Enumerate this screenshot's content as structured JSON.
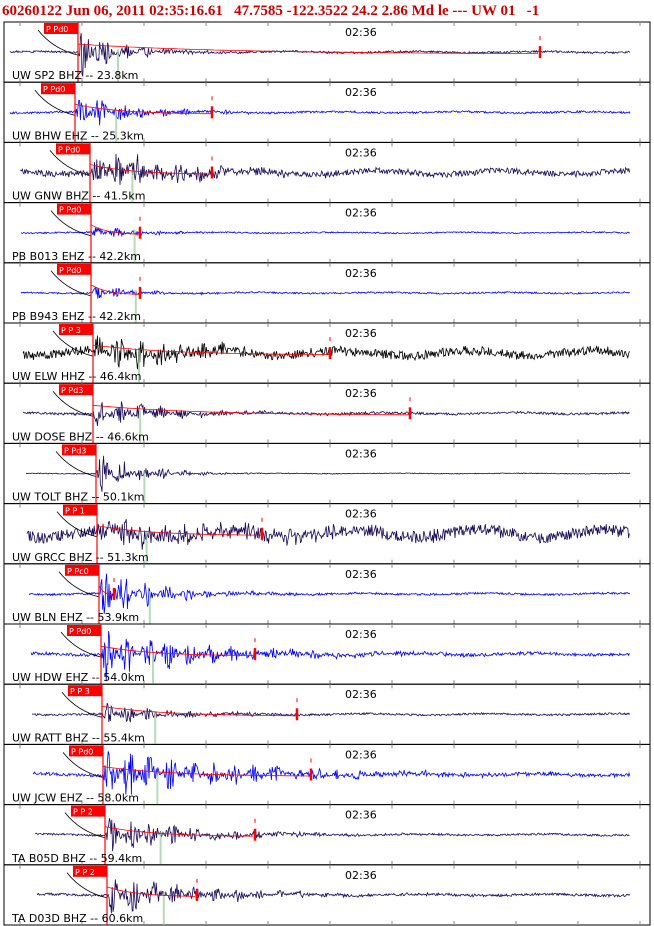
{
  "header": {
    "text": "60260122 Jun 06, 2011 02:35:16.61   47.7585 -122.3522 24.2 2.86 Md le --- UW 01   -1"
  },
  "chart_data": {
    "type": "seismogram",
    "minute_label": "02:36",
    "pick_phase": "P",
    "colors": {
      "red": "#ff0000",
      "blue": "#0000ff",
      "navy": "#1a0a5a",
      "black": "#000000",
      "green": "#99cc99",
      "tick": "#8a8a8a"
    },
    "traces": [
      {
        "label": "UW SP2 BHZ -- 23.8km",
        "pick_text": "Pd0",
        "color": "navy",
        "p": 78,
        "onset": 78,
        "amp": 30,
        "decay": 40,
        "noise": 1.0,
        "coda": 540,
        "seed": 3
      },
      {
        "label": "UW BHW EHZ -- 25.3km",
        "pick_text": "Pd0",
        "color": "blue",
        "p": 75,
        "onset": 75,
        "amp": 22,
        "decay": 55,
        "noise": 1.0,
        "coda": 212,
        "seed": 7
      },
      {
        "label": "UW GNW BHZ -- 41.5km",
        "pick_text": "Pd0",
        "color": "navy",
        "p": 90,
        "onset": 90,
        "amp": 25,
        "decay": 90,
        "noise": 3.0,
        "coda": 212,
        "seed": 11
      },
      {
        "label": "PB B013 EHZ -- 42.2km",
        "pick_text": "Pd0",
        "color": "blue",
        "p": 91,
        "onset": 91,
        "amp": 8,
        "decay": 45,
        "noise": 0.7,
        "coda": 140,
        "seed": 13
      },
      {
        "label": "PB B943 EHZ -- 42.2km",
        "pick_text": "Pd0",
        "color": "blue",
        "p": 91,
        "onset": 91,
        "amp": 8,
        "decay": 45,
        "noise": 0.8,
        "coda": 140,
        "seed": 17
      },
      {
        "label": "UW ELW HHZ -- 46.4km",
        "pick_text": "P 3",
        "color": "black",
        "p": 93,
        "onset": 93,
        "amp": 18,
        "decay": 120,
        "noise": 4.5,
        "coda": 330,
        "seed": 19
      },
      {
        "label": "UW DOSE BHZ -- 46.6km",
        "pick_text": "Pd3",
        "color": "navy",
        "p": 93,
        "onset": 93,
        "amp": 18,
        "decay": 70,
        "noise": 1.2,
        "coda": 410,
        "seed": 23
      },
      {
        "label": "UW TOLT BHZ -- 50.1km",
        "pick_text": "Pd3",
        "color": "navy",
        "p": 96,
        "onset": 96,
        "amp": 28,
        "decay": 40,
        "noise": 0.4,
        "coda": 0,
        "seed": 29
      },
      {
        "label": "UW GRCC BHZ -- 51.3km",
        "pick_text": "P 1",
        "color": "navy",
        "p": 97,
        "onset": 97,
        "amp": 15,
        "decay": 150,
        "noise": 6.0,
        "coda": 262,
        "seed": 31
      },
      {
        "label": "UW BLN EHZ -- 53.9km",
        "pick_text": "Pc0",
        "color": "blue",
        "p": 99,
        "onset": 99,
        "amp": 28,
        "decay": 60,
        "noise": 1.0,
        "coda": 114,
        "seed": 37
      },
      {
        "label": "UW HDW EHZ -- 54.0km",
        "pick_text": "Pd0",
        "color": "blue",
        "p": 101,
        "onset": 101,
        "amp": 28,
        "decay": 110,
        "noise": 1.5,
        "coda": 255,
        "seed": 41
      },
      {
        "label": "UW RATT BHZ -- 55.4km",
        "pick_text": "P 3",
        "color": "navy",
        "p": 102,
        "onset": 102,
        "amp": 12,
        "decay": 80,
        "noise": 1.0,
        "coda": 297,
        "seed": 43
      },
      {
        "label": "UW JCW EHZ -- 58.0km",
        "pick_text": "Pd0",
        "color": "blue",
        "p": 103,
        "onset": 103,
        "amp": 28,
        "decay": 140,
        "noise": 1.5,
        "coda": 311,
        "seed": 47
      },
      {
        "label": "TA B05D BHZ -- 59.4km",
        "pick_text": "P 2",
        "color": "navy",
        "p": 105,
        "onset": 105,
        "amp": 22,
        "decay": 90,
        "noise": 1.0,
        "coda": 255,
        "seed": 53
      },
      {
        "label": "TA D03D BHZ -- 60.6km",
        "pick_text": "P 2",
        "color": "navy",
        "p": 107,
        "onset": 107,
        "amp": 22,
        "decay": 95,
        "noise": 1.2,
        "coda": 197,
        "seed": 59
      }
    ]
  }
}
